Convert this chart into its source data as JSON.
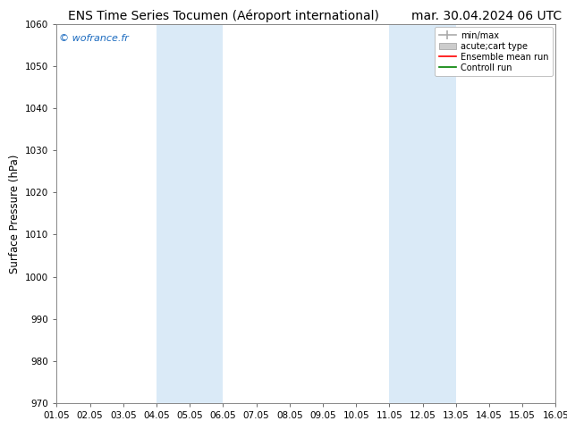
{
  "title_left": "ENS Time Series Tocumen (Aéroport international)",
  "title_right": "mar. 30.04.2024 06 UTC",
  "ylabel": "Surface Pressure (hPa)",
  "watermark": "© wofrance.fr",
  "ylim": [
    970,
    1060
  ],
  "yticks": [
    970,
    980,
    990,
    1000,
    1010,
    1020,
    1030,
    1040,
    1050,
    1060
  ],
  "xtick_labels": [
    "01.05",
    "02.05",
    "03.05",
    "04.05",
    "05.05",
    "06.05",
    "07.05",
    "08.05",
    "09.05",
    "10.05",
    "11.05",
    "12.05",
    "13.05",
    "14.05",
    "15.05",
    "16.05"
  ],
  "shaded_bands": [
    {
      "xstart": 3,
      "xend": 5
    },
    {
      "xstart": 10,
      "xend": 12
    }
  ],
  "shaded_color": "#daeaf7",
  "legend_labels": [
    "min/max",
    "acute;cart type",
    "Ensemble mean run",
    "Controll run"
  ],
  "background_color": "#ffffff",
  "plot_bg_color": "#ffffff",
  "title_fontsize": 10,
  "tick_fontsize": 7.5,
  "ylabel_fontsize": 8.5,
  "watermark_color": "#1a6abf",
  "n_xticks": 16,
  "x_min": 0,
  "x_max": 15
}
